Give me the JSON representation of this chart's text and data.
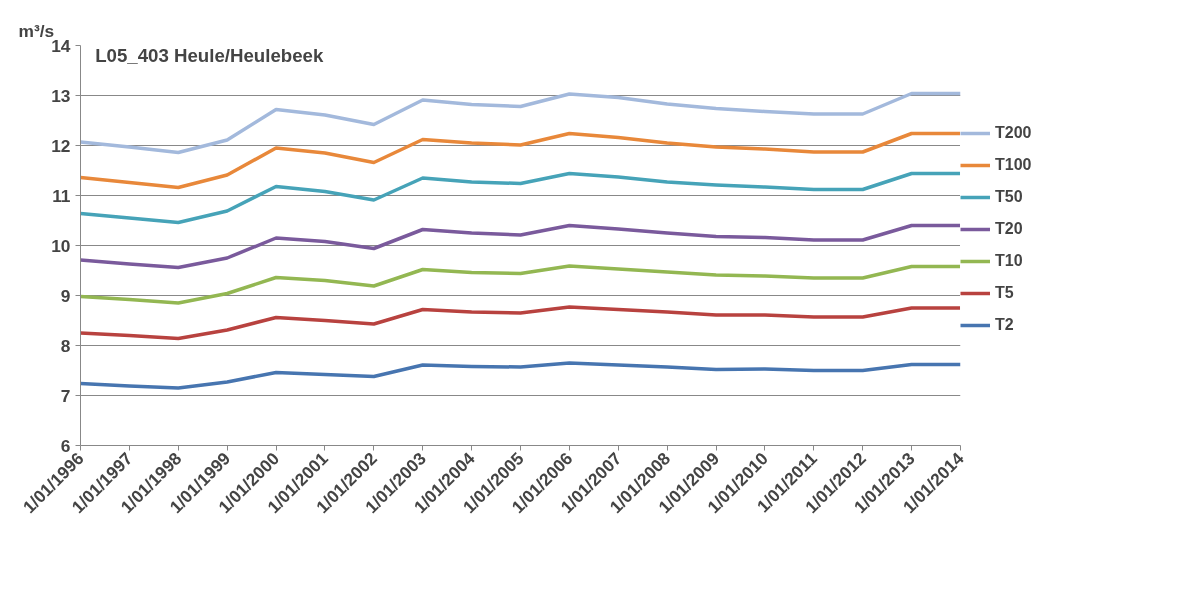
{
  "chart_data": {
    "type": "line",
    "title": "L05_403 Heule/Heulebeek",
    "ylabel": "m³/s",
    "categories": [
      "1/01/1996",
      "1/01/1997",
      "1/01/1998",
      "1/01/1999",
      "1/01/2000",
      "1/01/2001",
      "1/01/2002",
      "1/01/2003",
      "1/01/2004",
      "1/01/2005",
      "1/01/2006",
      "1/01/2007",
      "1/01/2008",
      "1/01/2009",
      "1/01/2010",
      "1/01/2011",
      "1/01/2012",
      "1/01/2013",
      "1/01/2014"
    ],
    "series": [
      {
        "name": "T200",
        "color": "#a3b9dc",
        "values": [
          12.07,
          11.97,
          11.86,
          12.11,
          12.72,
          12.61,
          12.42,
          12.91,
          12.82,
          12.78,
          13.03,
          12.96,
          12.83,
          12.74,
          12.68,
          12.63,
          12.63,
          13.04,
          13.04
        ]
      },
      {
        "name": "T100",
        "color": "#e8883a",
        "values": [
          11.36,
          11.26,
          11.16,
          11.41,
          11.95,
          11.85,
          11.66,
          12.12,
          12.05,
          12.01,
          12.24,
          12.16,
          12.05,
          11.97,
          11.93,
          11.87,
          11.87,
          12.24,
          12.24
        ]
      },
      {
        "name": "T50",
        "color": "#46a3b8",
        "values": [
          10.64,
          10.55,
          10.46,
          10.69,
          11.18,
          11.08,
          10.91,
          11.35,
          11.27,
          11.24,
          11.44,
          11.37,
          11.27,
          11.21,
          11.17,
          11.12,
          11.12,
          11.44,
          11.44
        ]
      },
      {
        "name": "T20",
        "color": "#7a5a9c",
        "values": [
          9.71,
          9.63,
          9.56,
          9.75,
          10.15,
          10.08,
          9.94,
          10.32,
          10.25,
          10.21,
          10.4,
          10.33,
          10.25,
          10.18,
          10.16,
          10.11,
          10.11,
          10.4,
          10.4
        ]
      },
      {
        "name": "T10",
        "color": "#93b752",
        "values": [
          8.98,
          8.92,
          8.85,
          9.04,
          9.36,
          9.3,
          9.19,
          9.52,
          9.46,
          9.44,
          9.59,
          9.53,
          9.47,
          9.41,
          9.39,
          9.35,
          9.35,
          9.58,
          9.58
        ]
      },
      {
        "name": "T5",
        "color": "#b8423f",
        "values": [
          8.25,
          8.2,
          8.14,
          8.31,
          8.56,
          8.5,
          8.43,
          8.72,
          8.67,
          8.65,
          8.77,
          8.72,
          8.67,
          8.61,
          8.61,
          8.57,
          8.57,
          8.75,
          8.75
        ]
      },
      {
        "name": "T2",
        "color": "#4775b0",
        "values": [
          7.24,
          7.19,
          7.15,
          7.27,
          7.46,
          7.42,
          7.38,
          7.61,
          7.58,
          7.57,
          7.65,
          7.61,
          7.57,
          7.52,
          7.53,
          7.5,
          7.5,
          7.62,
          7.62
        ]
      }
    ],
    "ylim": [
      6,
      14
    ],
    "yticks": [
      6,
      7,
      8,
      9,
      10,
      11,
      12,
      13,
      14
    ],
    "grid": "y",
    "legend": "right",
    "marker": "none",
    "line_style": "solid"
  }
}
